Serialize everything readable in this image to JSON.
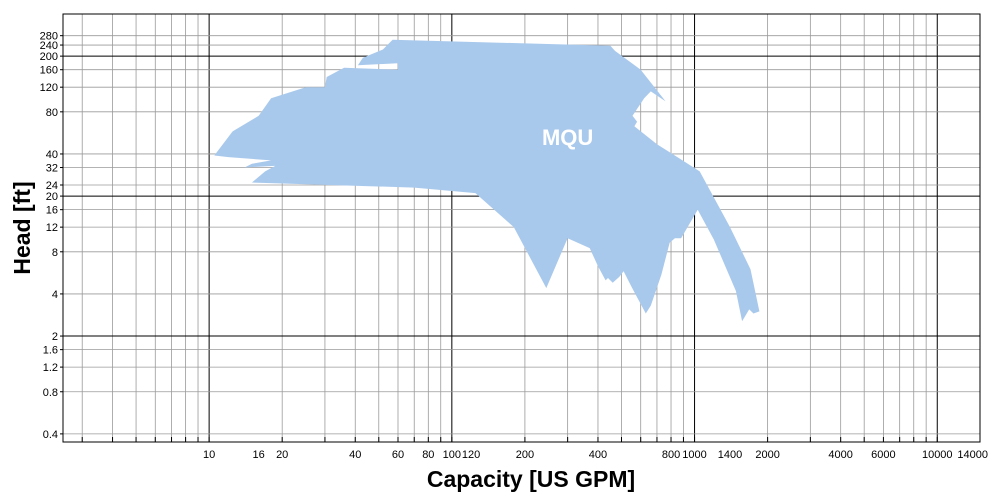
{
  "chart_data": {
    "type": "area",
    "xlabel": "Capacity [US GPM]",
    "ylabel": "Head [ft]",
    "x_scale": "log",
    "y_scale": "log",
    "xlim": [
      2.5,
      15000
    ],
    "ylim": [
      0.35,
      400
    ],
    "grid": true,
    "x_ticks": [
      {
        "value": 10,
        "label": "10"
      },
      {
        "value": 16,
        "label": "16"
      },
      {
        "value": 20,
        "label": "20"
      },
      {
        "value": 40,
        "label": "40"
      },
      {
        "value": 60,
        "label": "60"
      },
      {
        "value": 80,
        "label": "80"
      },
      {
        "value": 100,
        "label": "100"
      },
      {
        "value": 120,
        "label": "120"
      },
      {
        "value": 200,
        "label": "200"
      },
      {
        "value": 400,
        "label": "400"
      },
      {
        "value": 800,
        "label": "800"
      },
      {
        "value": 1000,
        "label": "1000"
      },
      {
        "value": 1400,
        "label": "1400"
      },
      {
        "value": 2000,
        "label": "2000"
      },
      {
        "value": 4000,
        "label": "4000"
      },
      {
        "value": 6000,
        "label": "6000"
      },
      {
        "value": 10000,
        "label": "10000"
      },
      {
        "value": 14000,
        "label": "14000"
      }
    ],
    "y_ticks": [
      {
        "value": 0.4,
        "label": "0.4"
      },
      {
        "value": 0.8,
        "label": "0.8"
      },
      {
        "value": 1.2,
        "label": "1.2"
      },
      {
        "value": 1.6,
        "label": "1.6"
      },
      {
        "value": 2,
        "label": "2"
      },
      {
        "value": 4,
        "label": "4"
      },
      {
        "value": 8,
        "label": "8"
      },
      {
        "value": 12,
        "label": "12"
      },
      {
        "value": 16,
        "label": "16"
      },
      {
        "value": 20,
        "label": "20"
      },
      {
        "value": 24,
        "label": "24"
      },
      {
        "value": 32,
        "label": "32"
      },
      {
        "value": 40,
        "label": "40"
      },
      {
        "value": 80,
        "label": "80"
      },
      {
        "value": 120,
        "label": "120"
      },
      {
        "value": 160,
        "label": "160"
      },
      {
        "value": 200,
        "label": "200"
      },
      {
        "value": 240,
        "label": "240"
      },
      {
        "value": 280,
        "label": "280"
      }
    ],
    "series": [
      {
        "name": "MQU",
        "color": "#a9c9ec",
        "label_at": {
          "x": 300,
          "y": 52
        },
        "points": [
          [
            10.5,
            39
          ],
          [
            12.5,
            58
          ],
          [
            16,
            75
          ],
          [
            18,
            100
          ],
          [
            25,
            120
          ],
          [
            30,
            120
          ],
          [
            30.5,
            142
          ],
          [
            36,
            165
          ],
          [
            60,
            160
          ],
          [
            60,
            178
          ],
          [
            41,
            172
          ],
          [
            43,
            195
          ],
          [
            52,
            223
          ],
          [
            57,
            262
          ],
          [
            450,
            237
          ],
          [
            470,
            218
          ],
          [
            600,
            160
          ],
          [
            760,
            95
          ],
          [
            660,
            112
          ],
          [
            620,
            100
          ],
          [
            555,
            75
          ],
          [
            580,
            68
          ],
          [
            565,
            63
          ],
          [
            700,
            47
          ],
          [
            850,
            38
          ],
          [
            1050,
            30
          ],
          [
            1400,
            12
          ],
          [
            1700,
            6
          ],
          [
            1850,
            3
          ],
          [
            1750,
            2.9
          ],
          [
            1680,
            3.1
          ],
          [
            1570,
            2.55
          ],
          [
            1480,
            4.2
          ],
          [
            1200,
            9.8
          ],
          [
            1030,
            16
          ],
          [
            880,
            10
          ],
          [
            830,
            10
          ],
          [
            790,
            9.3
          ],
          [
            730,
            5.5
          ],
          [
            660,
            3.3
          ],
          [
            630,
            2.9
          ],
          [
            550,
            4.5
          ],
          [
            510,
            5.8
          ],
          [
            490,
            5.3
          ],
          [
            460,
            4.8
          ],
          [
            440,
            5.2
          ],
          [
            430,
            5.0
          ],
          [
            400,
            6.3
          ],
          [
            370,
            8.5
          ],
          [
            300,
            10
          ],
          [
            245,
            4.4
          ],
          [
            180,
            12
          ],
          [
            125,
            21
          ],
          [
            70,
            23
          ],
          [
            15,
            25
          ],
          [
            17,
            30
          ],
          [
            20,
            35
          ],
          [
            19,
            33
          ],
          [
            14,
            32
          ],
          [
            15,
            34
          ],
          [
            18,
            36
          ],
          [
            12,
            38
          ]
        ]
      }
    ]
  }
}
